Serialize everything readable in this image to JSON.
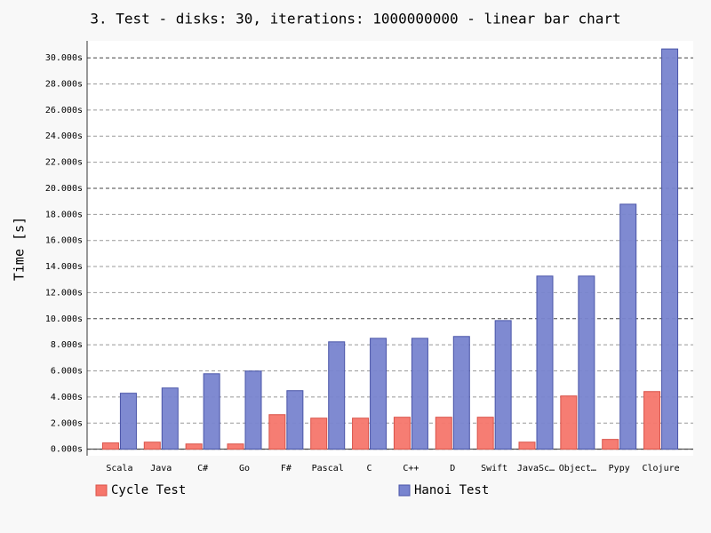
{
  "chart_data": {
    "type": "bar",
    "title": "3. Test - disks: 30, iterations: 1000000000 - linear bar chart",
    "y_label": "Time [s]",
    "categories": [
      "Scala",
      "Java",
      "C#",
      "Go",
      "F#",
      "Pascal",
      "C",
      "C++",
      "D",
      "Swift",
      "JavaSc…",
      "Object…",
      "Pypy",
      "Clojure"
    ],
    "series": [
      {
        "name": "Cycle Test",
        "color": "#f6766b",
        "values": [
          0.48,
          0.54,
          0.4,
          0.4,
          2.65,
          2.38,
          2.38,
          2.45,
          2.45,
          2.45,
          0.54,
          4.08,
          0.75,
          4.42
        ]
      },
      {
        "name": "Hanoi Test",
        "color": "#7884cf",
        "values": [
          4.29,
          4.69,
          5.78,
          5.99,
          4.49,
          8.23,
          8.5,
          8.5,
          8.64,
          9.86,
          13.27,
          13.27,
          18.78,
          30.68
        ]
      }
    ],
    "ylim": [
      -0.5,
      31.3
    ],
    "yticks": [
      {
        "value": 0,
        "label": "0.000s"
      },
      {
        "value": 2,
        "label": "2.000s"
      },
      {
        "value": 4,
        "label": "4.000s"
      },
      {
        "value": 6,
        "label": "6.000s"
      },
      {
        "value": 8,
        "label": "8.000s"
      },
      {
        "value": 10,
        "label": "10.000s"
      },
      {
        "value": 12,
        "label": "12.000s"
      },
      {
        "value": 14,
        "label": "14.000s"
      },
      {
        "value": 16,
        "label": "16.000s"
      },
      {
        "value": 18,
        "label": "18.000s"
      },
      {
        "value": 20,
        "label": "20.000s"
      },
      {
        "value": 22,
        "label": "22.000s"
      },
      {
        "value": 24,
        "label": "24.000s"
      },
      {
        "value": 26,
        "label": "26.000s"
      },
      {
        "value": 28,
        "label": "28.000s"
      },
      {
        "value": 30,
        "label": "30.000s"
      }
    ],
    "grid": true
  }
}
